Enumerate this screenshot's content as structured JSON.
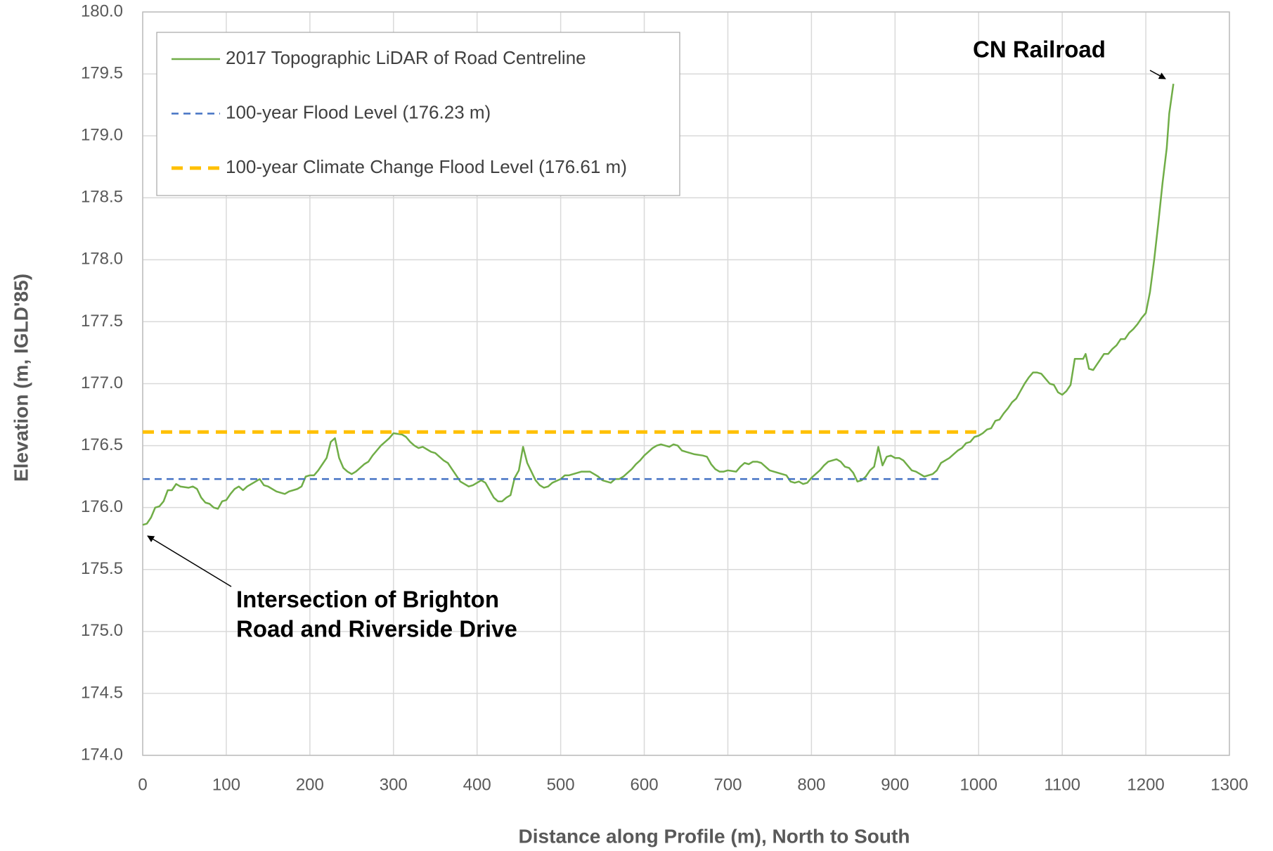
{
  "chart_data": {
    "type": "line",
    "xlabel": "Distance along Profile (m), North to South",
    "ylabel": "Elevation (m, IGLD'85)",
    "xlim": [
      0,
      1300
    ],
    "xticks": [
      0,
      100,
      200,
      300,
      400,
      500,
      600,
      700,
      800,
      900,
      1000,
      1100,
      1200,
      1300
    ],
    "ylim": [
      174,
      180
    ],
    "yticks": [
      {
        "value": 174,
        "label": "174.0"
      },
      {
        "value": 174.5,
        "label": "174.5"
      },
      {
        "value": 175,
        "label": "175.0"
      },
      {
        "value": 175.5,
        "label": "175.5"
      },
      {
        "value": 176,
        "label": "176.0"
      },
      {
        "value": 176.5,
        "label": "176.5"
      },
      {
        "value": 177,
        "label": "177.0"
      },
      {
        "value": 177.5,
        "label": "177.5"
      },
      {
        "value": 178,
        "label": "178.0"
      },
      {
        "value": 178.5,
        "label": "178.5"
      },
      {
        "value": 179,
        "label": "179.0"
      },
      {
        "value": 179.5,
        "label": "179.5"
      },
      {
        "value": 180,
        "label": "180.0"
      }
    ],
    "grid": true,
    "legend": "upper left",
    "series": [
      {
        "name": "2017 Topographic LiDAR of Road Centreline",
        "color": "#70ad47",
        "style": "solid",
        "x": [
          0,
          5,
          10,
          15,
          20,
          25,
          30,
          35,
          40,
          45,
          55,
          60,
          65,
          70,
          75,
          80,
          85,
          90,
          95,
          100,
          105,
          110,
          115,
          120,
          125,
          130,
          140,
          145,
          150,
          160,
          170,
          175,
          185,
          190,
          195,
          200,
          205,
          210,
          215,
          220,
          225,
          230,
          235,
          240,
          245,
          250,
          255,
          260,
          265,
          270,
          275,
          280,
          285,
          290,
          295,
          300,
          310,
          315,
          320,
          325,
          330,
          335,
          340,
          345,
          350,
          355,
          360,
          365,
          370,
          375,
          380,
          385,
          390,
          395,
          400,
          405,
          410,
          415,
          420,
          425,
          430,
          435,
          440,
          445,
          450,
          455,
          460,
          465,
          470,
          475,
          480,
          485,
          490,
          500,
          505,
          510,
          520,
          525,
          535,
          540,
          545,
          550,
          555,
          560,
          565,
          570,
          575,
          580,
          585,
          590,
          595,
          600,
          605,
          610,
          615,
          620,
          625,
          630,
          635,
          640,
          645,
          650,
          660,
          670,
          675,
          680,
          685,
          690,
          695,
          700,
          710,
          715,
          720,
          725,
          730,
          735,
          740,
          745,
          750,
          760,
          765,
          770,
          775,
          780,
          785,
          790,
          795,
          800,
          805,
          810,
          815,
          820,
          825,
          830,
          835,
          840,
          845,
          850,
          855,
          860,
          865,
          870,
          875,
          880,
          885,
          890,
          895,
          900,
          905,
          910,
          915,
          920,
          925,
          930,
          935,
          945,
          950,
          955,
          960,
          965,
          970,
          975,
          980,
          985,
          990,
          995,
          1000,
          1005,
          1010,
          1015,
          1020,
          1025,
          1030,
          1035,
          1040,
          1045,
          1050,
          1055,
          1060,
          1065,
          1070,
          1075,
          1080,
          1085,
          1090,
          1095,
          1100,
          1105,
          1110,
          1115,
          1120,
          1125,
          1128,
          1132,
          1137,
          1140,
          1145,
          1150,
          1155,
          1160,
          1165,
          1170,
          1175,
          1180,
          1185,
          1190,
          1195,
          1200,
          1205,
          1210,
          1215,
          1220,
          1225,
          1228,
          1233
        ],
        "values": [
          175.86,
          175.87,
          175.92,
          176.0,
          176.01,
          176.05,
          176.14,
          176.14,
          176.19,
          176.17,
          176.16,
          176.17,
          176.15,
          176.08,
          176.04,
          176.03,
          176.0,
          175.99,
          176.05,
          176.06,
          176.11,
          176.15,
          176.17,
          176.14,
          176.17,
          176.19,
          176.23,
          176.18,
          176.17,
          176.13,
          176.11,
          176.13,
          176.15,
          176.17,
          176.25,
          176.26,
          176.26,
          176.3,
          176.35,
          176.4,
          176.53,
          176.56,
          176.4,
          176.32,
          176.29,
          176.27,
          176.29,
          176.32,
          176.35,
          176.37,
          176.42,
          176.46,
          176.5,
          176.53,
          176.56,
          176.6,
          176.59,
          176.57,
          176.53,
          176.5,
          176.48,
          176.49,
          176.47,
          176.45,
          176.44,
          176.41,
          176.38,
          176.36,
          176.31,
          176.26,
          176.21,
          176.19,
          176.17,
          176.18,
          176.2,
          176.22,
          176.2,
          176.14,
          176.08,
          176.05,
          176.05,
          176.08,
          176.1,
          176.24,
          176.3,
          176.49,
          176.36,
          176.29,
          176.22,
          176.18,
          176.16,
          176.17,
          176.2,
          176.23,
          176.26,
          176.26,
          176.28,
          176.29,
          176.29,
          176.27,
          176.25,
          176.22,
          176.21,
          176.2,
          176.23,
          176.23,
          176.25,
          176.28,
          176.31,
          176.35,
          176.38,
          176.42,
          176.45,
          176.48,
          176.5,
          176.51,
          176.5,
          176.49,
          176.51,
          176.5,
          176.46,
          176.45,
          176.43,
          176.42,
          176.41,
          176.35,
          176.31,
          176.29,
          176.29,
          176.3,
          176.29,
          176.33,
          176.36,
          176.35,
          176.37,
          176.37,
          176.36,
          176.33,
          176.3,
          176.28,
          176.27,
          176.26,
          176.21,
          176.2,
          176.21,
          176.19,
          176.2,
          176.24,
          176.27,
          176.3,
          176.34,
          176.37,
          176.38,
          176.39,
          176.37,
          176.33,
          176.32,
          176.28,
          176.21,
          176.22,
          176.25,
          176.3,
          176.33,
          176.49,
          176.34,
          176.41,
          176.42,
          176.4,
          176.4,
          176.38,
          176.34,
          176.3,
          176.29,
          176.27,
          176.25,
          176.27,
          176.3,
          176.36,
          176.38,
          176.4,
          176.43,
          176.46,
          176.48,
          176.52,
          176.53,
          176.57,
          176.58,
          176.6,
          176.63,
          176.64,
          176.7,
          176.71,
          176.76,
          176.8,
          176.85,
          176.88,
          176.94,
          177.0,
          177.05,
          177.09,
          177.09,
          177.08,
          177.04,
          177.0,
          176.99,
          176.93,
          176.91,
          176.94,
          176.99,
          177.2,
          177.2,
          177.2,
          177.24,
          177.12,
          177.11,
          177.14,
          177.19,
          177.24,
          177.24,
          177.28,
          177.31,
          177.36,
          177.36,
          177.41,
          177.44,
          177.48,
          177.53,
          177.57,
          177.74,
          178.0,
          178.3,
          178.62,
          178.9,
          179.18,
          179.42
        ]
      },
      {
        "name": "100-year Flood Level (176.23 m)",
        "color": "#4472c4",
        "style": "dashed",
        "x": [
          0,
          955
        ],
        "values": [
          176.23,
          176.23
        ]
      },
      {
        "name": "100-year Climate Change Flood Level (176.61 m)",
        "color": "#ffc000",
        "style": "thick-dashed",
        "x": [
          0,
          1000
        ],
        "values": [
          176.61,
          176.61
        ]
      }
    ],
    "annotations": [
      {
        "lines": [
          "CN Railroad"
        ]
      },
      {
        "lines": [
          "Intersection of Brighton",
          "Road and Riverside Drive"
        ]
      }
    ]
  }
}
